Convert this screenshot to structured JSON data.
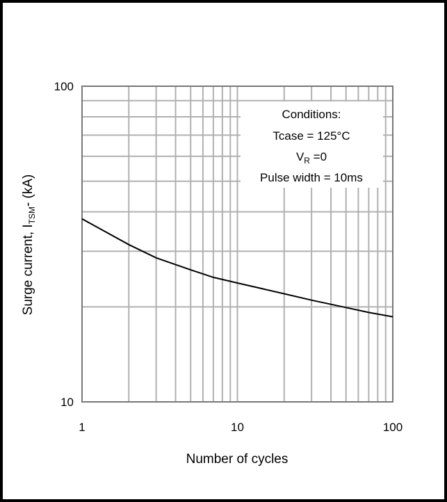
{
  "chart_data": {
    "type": "line",
    "xscale": "log",
    "yscale": "log",
    "xlim": [
      1,
      100
    ],
    "ylim": [
      10,
      100
    ],
    "x_ticks": [
      "1",
      "10",
      "100"
    ],
    "y_ticks": [
      "10",
      "100"
    ],
    "xlabel": "Number of cycles",
    "ylabel": {
      "prefix": "Surge current, I",
      "subscript": "TSM",
      "suffix": "- (kA)"
    },
    "grid": true,
    "annotation": {
      "title": "Conditions:",
      "line1": "Tcase = 125°C",
      "line2": {
        "prefix": "V",
        "subscript": "R",
        "suffix": " =0"
      },
      "line3": "Pulse width = 10ms",
      "placement": "top-right"
    },
    "series": [
      {
        "x": [
          1,
          2,
          3,
          5,
          7,
          10,
          20,
          30,
          50,
          70,
          100
        ],
        "y": [
          38.0,
          31.5,
          28.6,
          26.2,
          24.8,
          23.8,
          22.0,
          21.0,
          19.9,
          19.2,
          18.6
        ]
      }
    ]
  }
}
